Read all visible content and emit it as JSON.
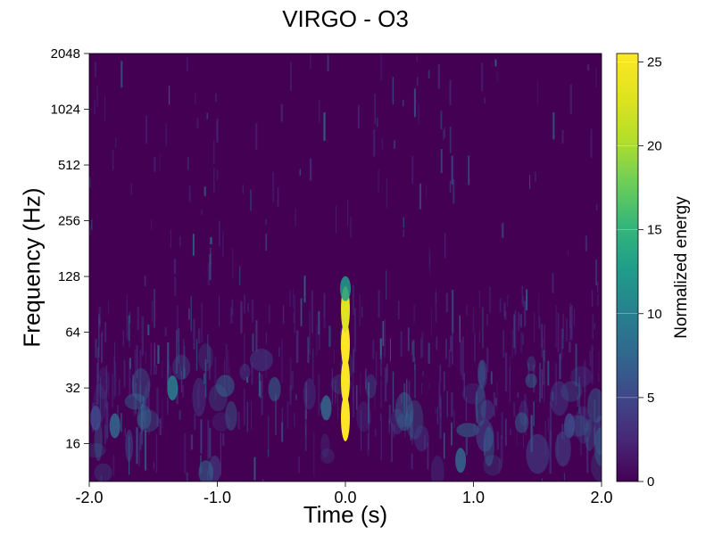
{
  "chart_data": {
    "type": "heatmap",
    "title": "VIRGO - O3",
    "xlabel": "Time (s)",
    "ylabel": "Frequency (Hz)",
    "colorbar_label": "Normalized energy",
    "xlim": [
      -2.0,
      2.0
    ],
    "ylim": [
      10,
      2048
    ],
    "yscale": "log2",
    "xticks": [
      -2.0,
      -1.0,
      0.0,
      1.0,
      2.0
    ],
    "xtick_labels": [
      "-2.0",
      "-1.0",
      "0.0",
      "1.0",
      "2.0"
    ],
    "yticks": [
      16,
      32,
      64,
      128,
      256,
      512,
      1024,
      2048
    ],
    "ytick_labels": [
      "16",
      "32",
      "64",
      "128",
      "256",
      "512",
      "1024",
      "2048"
    ],
    "clim": [
      0,
      25.5
    ],
    "cticks": [
      0,
      5,
      10,
      15,
      20,
      25
    ],
    "ctick_labels": [
      "0",
      "5",
      "10",
      "15",
      "20",
      "25"
    ],
    "colormap": "viridis",
    "grid": false,
    "events": [
      {
        "t": 0.0,
        "f": 22,
        "energy": 25.5
      },
      {
        "t": 0.0,
        "f": 35,
        "energy": 25.5
      },
      {
        "t": 0.0,
        "f": 55,
        "energy": 25.5
      },
      {
        "t": 0.0,
        "f": 85,
        "energy": 24
      },
      {
        "t": 0.0,
        "f": 110,
        "energy": 14
      },
      {
        "t": -1.35,
        "f": 32,
        "energy": 9
      },
      {
        "t": -1.8,
        "f": 20,
        "energy": 8
      },
      {
        "t": -0.15,
        "f": 25,
        "energy": 7
      },
      {
        "t": 0.9,
        "f": 13,
        "energy": 7
      },
      {
        "t": 1.75,
        "f": 20,
        "energy": 6
      },
      {
        "t": -1.95,
        "f": 22,
        "energy": 6
      }
    ]
  }
}
